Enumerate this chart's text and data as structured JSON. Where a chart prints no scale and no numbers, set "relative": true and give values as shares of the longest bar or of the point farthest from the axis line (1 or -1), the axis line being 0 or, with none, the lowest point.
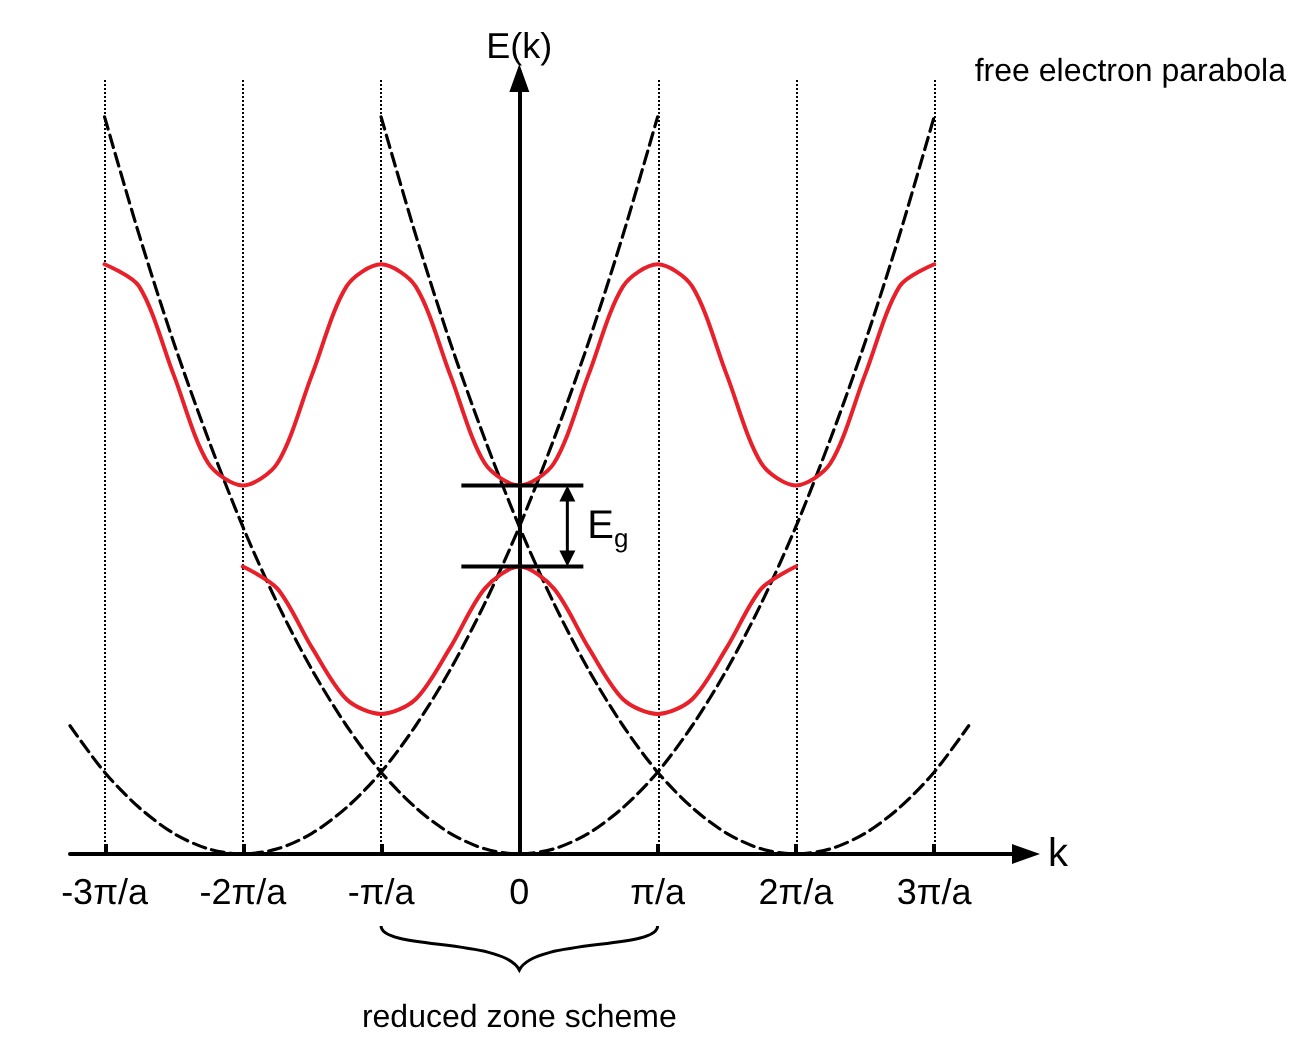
{
  "chart_data": {
    "type": "line",
    "relative": true,
    "xlabel": "k",
    "ylabel": "E(k)",
    "xlim": [
      -3.25,
      3.65
    ],
    "xticks": [
      {
        "value": -3,
        "label": "-3π/a"
      },
      {
        "value": -2,
        "label": "-2π/a"
      },
      {
        "value": -1,
        "label": "-π/a"
      },
      0,
      {
        "value": 1,
        "label": "π/a"
      },
      {
        "value": 2,
        "label": "2π/a"
      },
      {
        "value": 3,
        "label": "3π/a"
      }
    ],
    "grid": "x",
    "marker": "none",
    "series": [
      {
        "color": "#e8202a",
        "x": [
          -3,
          -2.75,
          -2.5,
          -2.25,
          -2,
          -1.75,
          -1.5,
          -1.25,
          -1,
          -0.75,
          -0.5,
          -0.25,
          0,
          0.25,
          0.5,
          0.75,
          1,
          1.25,
          1.5,
          1.75,
          2,
          2.25,
          2.5,
          2.75,
          3
        ],
        "values": [
          0.8,
          0.77,
          0.65,
          0.53,
          0.5,
          0.53,
          0.65,
          0.77,
          0.8,
          0.77,
          0.65,
          0.53,
          0.5,
          0.53,
          0.65,
          0.77,
          0.8,
          0.77,
          0.65,
          0.53,
          0.5,
          0.53,
          0.65,
          0.77,
          0.8
        ]
      },
      {
        "color": "#e8202a",
        "x": [
          -2,
          -1.75,
          -1.5,
          -1.25,
          -1,
          -0.75,
          -0.5,
          -0.25,
          0,
          0.25,
          0.5,
          0.75,
          1,
          1.25,
          1.5,
          1.75,
          2
        ],
        "values": [
          0.39,
          0.36,
          0.28,
          0.21,
          0.19,
          0.21,
          0.28,
          0.36,
          0.39,
          0.36,
          0.28,
          0.21,
          0.19,
          0.21,
          0.28,
          0.36,
          0.39
        ]
      },
      {
        "color": "#000000",
        "line_style": "dashed",
        "x": [
          -3,
          -2.75,
          -2.5,
          -2.25,
          -2,
          -1.75,
          -1.5,
          -1.25,
          -1,
          -0.75,
          -0.5,
          -0.25,
          0,
          0.25,
          0.5,
          0.75,
          1,
          1.25,
          1.5,
          1.75,
          2,
          2.25,
          2.5,
          2.75,
          3
        ],
        "values": [
          1,
          0.84,
          0.694,
          0.563,
          0.444,
          0.34,
          0.25,
          0.174,
          0.111,
          0.063,
          0.028,
          0.007,
          0,
          0.007,
          0.028,
          0.063,
          0.111,
          0.174,
          0.25,
          0.34,
          0.444,
          0.563,
          0.694,
          0.84,
          1
        ]
      },
      {
        "color": "#000000",
        "line_style": "dashed",
        "x": [
          -3.25,
          -3,
          -2.75,
          -2.5,
          -2.25,
          -2,
          -1.75,
          -1.5,
          -1.25,
          -1,
          -0.75,
          -0.5,
          -0.25,
          0,
          0.25,
          0.5,
          0.75,
          1
        ],
        "values": [
          0.174,
          0.111,
          0.063,
          0.028,
          0.007,
          0,
          0.007,
          0.028,
          0.063,
          0.111,
          0.174,
          0.25,
          0.34,
          0.444,
          0.563,
          0.694,
          0.84,
          1
        ]
      },
      {
        "color": "#000000",
        "line_style": "dashed",
        "x": [
          -1,
          -0.75,
          -0.5,
          -0.25,
          0,
          0.25,
          0.5,
          0.75,
          1,
          1.25,
          1.5,
          1.75,
          2,
          2.25,
          2.5,
          2.75,
          3,
          3.25
        ],
        "values": [
          1,
          0.84,
          0.694,
          0.563,
          0.444,
          0.34,
          0.25,
          0.174,
          0.111,
          0.063,
          0.028,
          0.007,
          0,
          0.007,
          0.028,
          0.063,
          0.111,
          0.174
        ]
      }
    ],
    "annotations": [
      "free electron parabola",
      "reduced zone scheme",
      "E$_{g}$"
    ]
  }
}
